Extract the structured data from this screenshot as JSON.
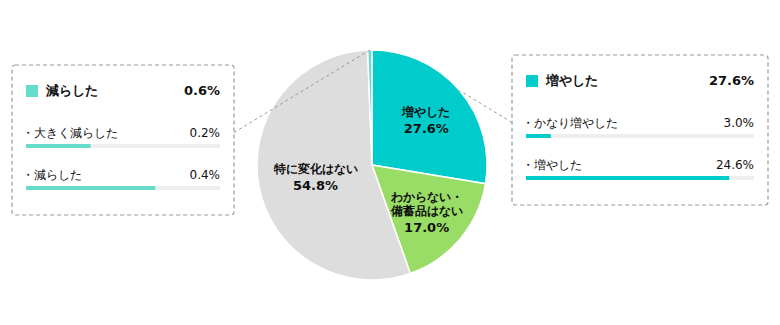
{
  "chart_data": {
    "type": "pie",
    "categories": [
      "増やした",
      "わからない・\n備蓄品はない",
      "特に変化はない",
      "減らした"
    ],
    "values": [
      27.6,
      17.0,
      54.8,
      0.6
    ],
    "value_labels": [
      "27.6%",
      "17.0%",
      "54.8%",
      "0.6%"
    ],
    "colors": [
      "#00CCCC",
      "#99DD66",
      "#DDDDDD",
      "#66DDCC"
    ],
    "data_labels": true,
    "annotations": [
      {
        "category": "増やした",
        "items": [
          {
            "label": "・かなり増やした",
            "value": 3.0,
            "value_label": "3.0%"
          },
          {
            "label": "・増やした",
            "value": 24.6,
            "value_label": "24.6%"
          }
        ]
      },
      {
        "category": "減らした",
        "items": [
          {
            "label": "・大きく減らした",
            "value": 0.2,
            "value_label": "0.2%"
          },
          {
            "label": "・減らした",
            "value": 0.4,
            "value_label": "0.4%"
          }
        ]
      }
    ]
  }
}
